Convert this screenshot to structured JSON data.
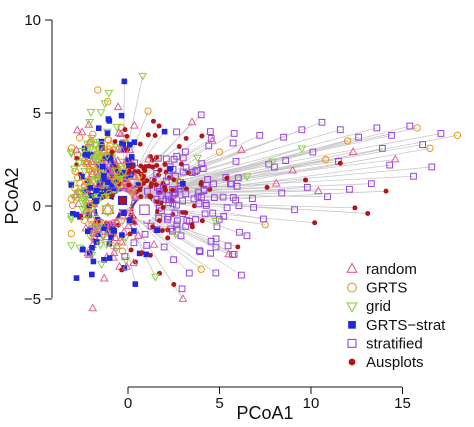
{
  "chart_data": {
    "type": "scatter",
    "title": "",
    "xlabel": "PCoA1",
    "ylabel": "PCoA2",
    "xlim": [
      -3.5,
      18.3
    ],
    "ylim": [
      -9,
      10.5
    ],
    "xticks": [
      0,
      5,
      10,
      15
    ],
    "yticks": [
      -5,
      0,
      5,
      10
    ],
    "x_tick_labels": [
      "0",
      "5",
      "10",
      "15"
    ],
    "y_tick_labels": [
      "−5",
      "0",
      "5",
      "10"
    ],
    "grid": false,
    "legend_position": "bottom-right",
    "connector_color": "#c8c8c8",
    "series": [
      {
        "name": "random",
        "marker": "triangle-up-open",
        "color": "#e0609a",
        "cloud_center": [
          -1.0,
          0.5
        ],
        "cloud_spread": [
          0.9,
          1.8
        ],
        "tail_points": [
          [
            3.5,
            4.5
          ],
          [
            4.6,
            3.5
          ],
          [
            6.2,
            3.0
          ],
          [
            8.1,
            1.2
          ],
          [
            10.4,
            0.8
          ],
          [
            12.3,
            2.9
          ],
          [
            5.5,
            -2.6
          ],
          [
            3.0,
            -5.0
          ],
          [
            9.0,
            1.9
          ],
          [
            14.6,
            2.5
          ]
        ]
      },
      {
        "name": "GRTS",
        "marker": "circle-open",
        "color": "#e8961e",
        "cloud_center": [
          -1.3,
          1.0
        ],
        "cloud_spread": [
          0.8,
          1.6
        ],
        "tail_points": [
          [
            1.1,
            5.1
          ],
          [
            5.0,
            2.9
          ],
          [
            10.8,
            2.5
          ],
          [
            15.8,
            4.2
          ],
          [
            18.0,
            3.8
          ],
          [
            7.5,
            -1.0
          ],
          [
            4.0,
            -3.4
          ],
          [
            12.0,
            3.5
          ],
          [
            2.8,
            1.3
          ],
          [
            16.5,
            3.1
          ]
        ]
      },
      {
        "name": "grid",
        "marker": "triangle-down-open",
        "color": "#8cd23c",
        "cloud_center": [
          -1.5,
          1.0
        ],
        "cloud_spread": [
          0.8,
          1.7
        ],
        "tail_points": [
          [
            0.8,
            7.0
          ],
          [
            3.8,
            2.6
          ],
          [
            6.5,
            1.6
          ],
          [
            9.5,
            3.1
          ],
          [
            2.6,
            -1.5
          ],
          [
            4.8,
            -0.8
          ],
          [
            7.9,
            2.4
          ],
          [
            1.5,
            -3.8
          ]
        ]
      },
      {
        "name": "GRTS−strat",
        "marker": "square-filled",
        "color": "#1e28dc",
        "cloud_center": [
          -1.0,
          0.7
        ],
        "cloud_spread": [
          0.8,
          1.8
        ],
        "tail_points": [
          [
            0.1,
            3.3
          ],
          [
            1.6,
            -1.3
          ],
          [
            2.3,
            2.0
          ],
          [
            1.0,
            -2.6
          ],
          [
            3.0,
            1.2
          ],
          [
            0.4,
            -4.2
          ],
          [
            -0.2,
            6.7
          ],
          [
            2.0,
            4.0
          ]
        ]
      },
      {
        "name": "stratified",
        "marker": "square-open",
        "color": "#9646dc",
        "cloud_center": [
          3.0,
          0.5
        ],
        "cloud_spread": [
          2.2,
          1.7
        ],
        "tail_points": [
          [
            4.0,
            4.9
          ],
          [
            4.5,
            4.0
          ],
          [
            5.8,
            3.9
          ],
          [
            7.2,
            3.8
          ],
          [
            8.5,
            3.7
          ],
          [
            9.5,
            4.1
          ],
          [
            10.6,
            4.5
          ],
          [
            11.6,
            4.1
          ],
          [
            12.6,
            3.7
          ],
          [
            13.6,
            4.2
          ],
          [
            14.4,
            3.8
          ],
          [
            15.4,
            4.3
          ],
          [
            16.1,
            3.3
          ],
          [
            17.1,
            3.9
          ],
          [
            16.6,
            2.1
          ],
          [
            15.6,
            1.6
          ],
          [
            14.3,
            2.2
          ],
          [
            13.3,
            1.2
          ],
          [
            12.1,
            0.9
          ],
          [
            10.9,
            0.5
          ],
          [
            9.8,
            1.0
          ],
          [
            8.4,
            0.7
          ],
          [
            7.4,
            -0.7
          ],
          [
            6.5,
            -1.6
          ],
          [
            5.8,
            -2.6
          ],
          [
            4.8,
            -3.6
          ],
          [
            3.9,
            -2.4
          ],
          [
            6.8,
            0.4
          ],
          [
            9.1,
            -0.2
          ],
          [
            11.5,
            2.4
          ],
          [
            13.9,
            3.1
          ],
          [
            10.1,
            2.9
          ],
          [
            8.0,
            2.1
          ],
          [
            5.9,
            2.4
          ]
        ]
      },
      {
        "name": "Ausplots",
        "marker": "circle-filled",
        "color": "#b41414",
        "cloud_center": [
          0.5,
          0.5
        ],
        "cloud_spread": [
          1.5,
          1.7
        ],
        "tail_points": [
          [
            11.6,
            2.3
          ],
          [
            12.4,
            -0.1
          ],
          [
            13.1,
            -0.4
          ],
          [
            5.4,
            1.5
          ],
          [
            7.6,
            1.0
          ],
          [
            9.7,
            1.4
          ],
          [
            3.5,
            -1.0
          ],
          [
            2.8,
            3.2
          ],
          [
            6.0,
            -2.2
          ],
          [
            1.7,
            4.3
          ],
          [
            14.1,
            0.8
          ],
          [
            10.2,
            -0.9
          ]
        ]
      }
    ],
    "centroids": [
      {
        "marker": "triangle-up-open",
        "color": "#e0609a",
        "x": -1.1,
        "y": -0.2
      },
      {
        "marker": "circle-open",
        "color": "#e8961e",
        "x": -1.1,
        "y": -0.2
      },
      {
        "marker": "triangle-down-open",
        "color": "#8cd23c",
        "x": -1.1,
        "y": -0.2
      },
      {
        "marker": "square-filled",
        "color": "#1e28dc",
        "x": -0.3,
        "y": 0.3
      },
      {
        "marker": "square-open",
        "color": "#9646dc",
        "x": 0.9,
        "y": -0.2
      },
      {
        "marker": "circle-filled",
        "color": "#b41414",
        "x": -0.3,
        "y": 0.3
      }
    ]
  }
}
